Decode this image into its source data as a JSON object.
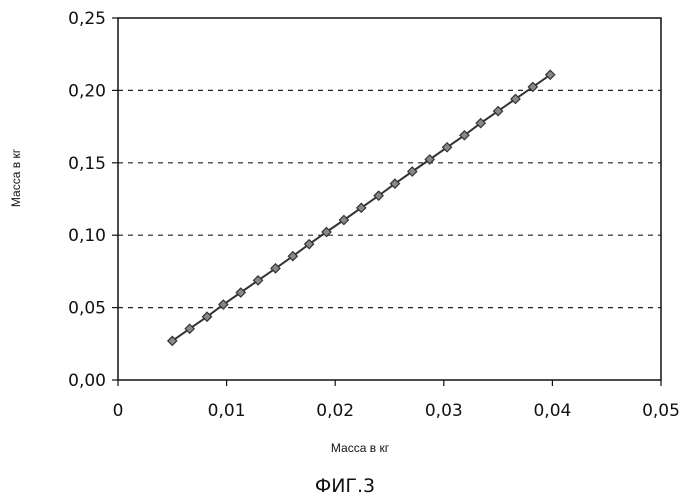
{
  "chart_data": {
    "type": "line",
    "xlabel": "Масса в кг",
    "ylabel": "Масса в кг",
    "xlim": [
      0,
      0.05
    ],
    "ylim": [
      0,
      0.25
    ],
    "grid": "horizontal-dashed",
    "x_ticks": [
      "0",
      "0,01",
      "0,02",
      "0,03",
      "0,04",
      "0,05"
    ],
    "y_ticks": [
      "0,00",
      "0,05",
      "0,10",
      "0,15",
      "0,20",
      "0,25"
    ],
    "series": [
      {
        "marker": "diamond",
        "color": "#333333",
        "x": [
          0.005,
          0.0066,
          0.0082,
          0.0097,
          0.0113,
          0.0129,
          0.0145,
          0.0161,
          0.0176,
          0.0192,
          0.0208,
          0.0224,
          0.024,
          0.0255,
          0.0271,
          0.0287,
          0.0303,
          0.0319,
          0.0334,
          0.035,
          0.0366,
          0.0382,
          0.0398
        ],
        "y": [
          0.027,
          0.0354,
          0.0437,
          0.0521,
          0.0604,
          0.0688,
          0.0771,
          0.0855,
          0.0938,
          0.1022,
          0.1105,
          0.1189,
          0.1273,
          0.1356,
          0.144,
          0.1523,
          0.1607,
          0.169,
          0.1774,
          0.1857,
          0.1941,
          0.2024,
          0.2108
        ]
      }
    ]
  },
  "caption": "ФИГ.3"
}
